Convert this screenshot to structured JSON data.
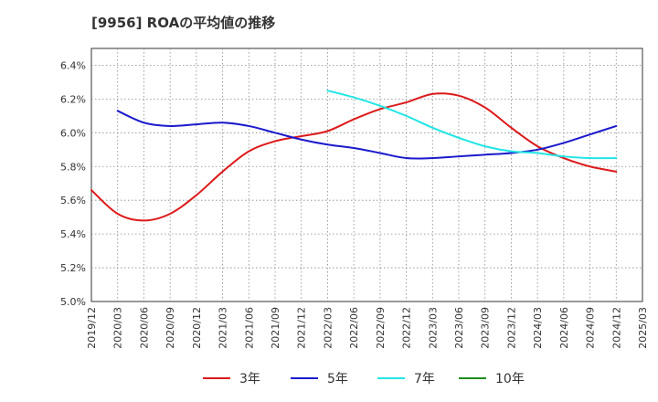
{
  "chart_data": {
    "type": "line",
    "title": "[9956]  ROAの平均値の推移",
    "xlabel": "",
    "ylabel": "",
    "ylim": [
      5.0,
      6.5
    ],
    "yticks": [
      5.0,
      5.2,
      5.4,
      5.6,
      5.8,
      6.0,
      6.2,
      6.4
    ],
    "ytick_labels": [
      "5.0%",
      "5.2%",
      "5.4%",
      "5.6%",
      "5.8%",
      "6.0%",
      "6.2%",
      "6.4%"
    ],
    "xtick_labels": [
      "2019/12",
      "2020/03",
      "2020/06",
      "2020/09",
      "2020/12",
      "2021/03",
      "2021/06",
      "2021/09",
      "2021/12",
      "2022/03",
      "2022/06",
      "2022/09",
      "2022/12",
      "2023/03",
      "2023/06",
      "2023/09",
      "2023/12",
      "2024/03",
      "2024/06",
      "2024/09",
      "2024/12",
      "2025/03"
    ],
    "grid": true,
    "legend_position": "bottom",
    "series": [
      {
        "name": "3年",
        "color": "#dd1a1a",
        "points": [
          [
            "2019/12",
            5.66
          ],
          [
            "2020/03",
            5.52
          ],
          [
            "2020/06",
            5.48
          ],
          [
            "2020/09",
            5.52
          ],
          [
            "2020/12",
            5.63
          ],
          [
            "2021/03",
            5.77
          ],
          [
            "2021/06",
            5.89
          ],
          [
            "2021/09",
            5.95
          ],
          [
            "2021/12",
            5.98
          ],
          [
            "2022/03",
            6.01
          ],
          [
            "2022/06",
            6.08
          ],
          [
            "2022/09",
            6.14
          ],
          [
            "2022/12",
            6.18
          ],
          [
            "2023/03",
            6.23
          ],
          [
            "2023/06",
            6.22
          ],
          [
            "2023/09",
            6.15
          ],
          [
            "2023/12",
            6.03
          ],
          [
            "2024/03",
            5.92
          ],
          [
            "2024/06",
            5.85
          ],
          [
            "2024/09",
            5.8
          ],
          [
            "2024/12",
            5.77
          ]
        ]
      },
      {
        "name": "5年",
        "color": "#1a1acc",
        "points": [
          [
            "2020/03",
            6.13
          ],
          [
            "2020/06",
            6.06
          ],
          [
            "2020/09",
            6.04
          ],
          [
            "2020/12",
            6.05
          ],
          [
            "2021/03",
            6.06
          ],
          [
            "2021/06",
            6.04
          ],
          [
            "2021/09",
            6.0
          ],
          [
            "2021/12",
            5.96
          ],
          [
            "2022/03",
            5.93
          ],
          [
            "2022/06",
            5.91
          ],
          [
            "2022/09",
            5.88
          ],
          [
            "2022/12",
            5.85
          ],
          [
            "2023/03",
            5.85
          ],
          [
            "2023/06",
            5.86
          ],
          [
            "2023/09",
            5.87
          ],
          [
            "2023/12",
            5.88
          ],
          [
            "2024/03",
            5.9
          ],
          [
            "2024/06",
            5.94
          ],
          [
            "2024/09",
            5.99
          ],
          [
            "2024/12",
            6.04
          ]
        ]
      },
      {
        "name": "7年",
        "color": "#22e5e5",
        "points": [
          [
            "2022/03",
            6.25
          ],
          [
            "2022/06",
            6.21
          ],
          [
            "2022/09",
            6.16
          ],
          [
            "2022/12",
            6.1
          ],
          [
            "2023/03",
            6.03
          ],
          [
            "2023/06",
            5.97
          ],
          [
            "2023/09",
            5.92
          ],
          [
            "2023/12",
            5.89
          ],
          [
            "2024/03",
            5.88
          ],
          [
            "2024/06",
            5.86
          ],
          [
            "2024/09",
            5.85
          ],
          [
            "2024/12",
            5.85
          ]
        ]
      },
      {
        "name": "10年",
        "color": "#1a8c1a",
        "points": []
      }
    ]
  }
}
